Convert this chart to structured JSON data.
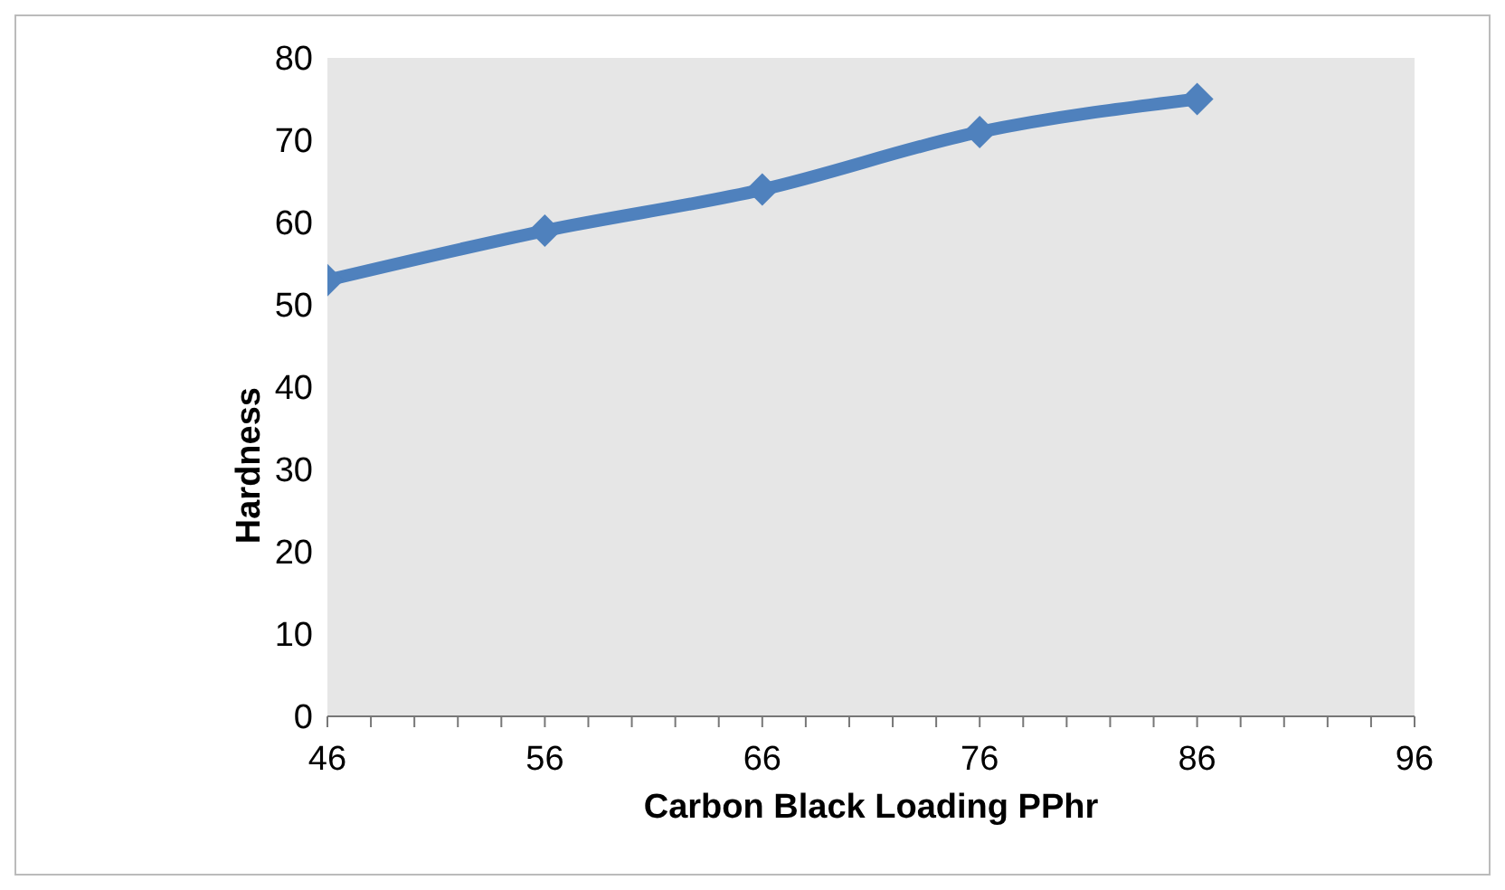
{
  "chart_data": {
    "type": "line",
    "xlabel": "Carbon Black Loading PPhr",
    "ylabel": "Hardness",
    "x": [
      46,
      56,
      66,
      76,
      86
    ],
    "series": [
      {
        "color": "#4f81bd",
        "values": [
          53,
          59,
          64,
          71,
          75
        ]
      }
    ],
    "xlim": [
      46,
      96
    ],
    "xticks": [
      46,
      {
        "value": 48,
        "label": null
      },
      {
        "value": 50,
        "label": null
      },
      {
        "value": 52,
        "label": null
      },
      {
        "value": 54,
        "label": null
      },
      56,
      {
        "value": 58,
        "label": null
      },
      {
        "value": 60,
        "label": null
      },
      {
        "value": 62,
        "label": null
      },
      {
        "value": 64,
        "label": null
      },
      66,
      {
        "value": 68,
        "label": null
      },
      {
        "value": 70,
        "label": null
      },
      {
        "value": 72,
        "label": null
      },
      {
        "value": 74,
        "label": null
      },
      76,
      {
        "value": 78,
        "label": null
      },
      {
        "value": 80,
        "label": null
      },
      {
        "value": 82,
        "label": null
      },
      {
        "value": 84,
        "label": null
      },
      86,
      {
        "value": 88,
        "label": null
      },
      {
        "value": 90,
        "label": null
      },
      {
        "value": 92,
        "label": null
      },
      {
        "value": 94,
        "label": null
      },
      96
    ],
    "ylim": [
      0,
      80
    ],
    "yticks": [
      0,
      10,
      20,
      30,
      40,
      50,
      60,
      70,
      80
    ],
    "grid": false,
    "legend": false,
    "marker": "diamond",
    "line_style": "solid"
  }
}
